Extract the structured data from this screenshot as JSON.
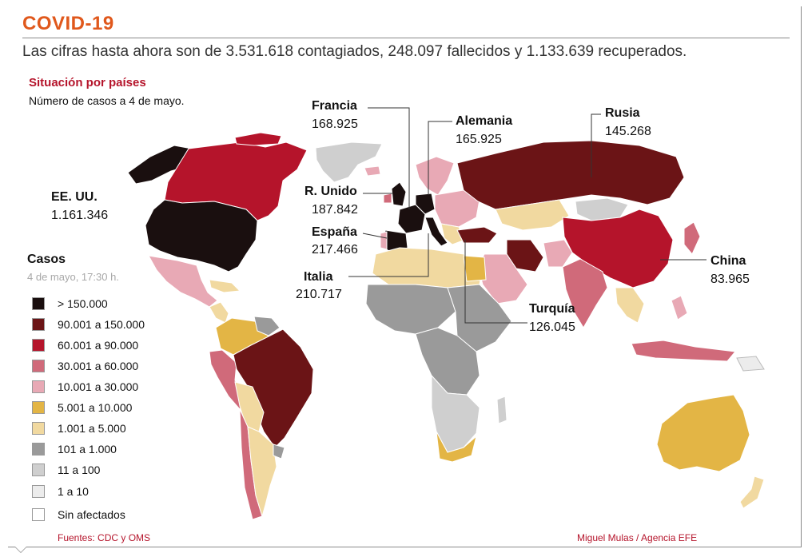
{
  "header": {
    "title": "COVID-19",
    "subtitle": "Las cifras hasta ahora son de 3.531.618 contagiados, 248.097 fallecidos y 1.133.639 recuperados."
  },
  "section": {
    "title": "Situación por países",
    "note": "Número de casos a 4 de mayo."
  },
  "countries": [
    {
      "name": "Francia",
      "value": "168.925"
    },
    {
      "name": "Alemania",
      "value": "165.925"
    },
    {
      "name": "Rusia",
      "value": "145.268"
    },
    {
      "name": "EE. UU.",
      "value": "1.161.346"
    },
    {
      "name": "R. Unido",
      "value": "187.842"
    },
    {
      "name": "España",
      "value": "217.466"
    },
    {
      "name": "Italia",
      "value": "210.717"
    },
    {
      "name": "China",
      "value": "83.965"
    },
    {
      "name": "Turquía",
      "value": "126.045"
    }
  ],
  "legend": {
    "title": "Casos",
    "timestamp": "4 de mayo, 17:30 h.",
    "items": [
      {
        "label": "> 150.000",
        "color": "#1a0f0f"
      },
      {
        "label": "90.001 a 150.000",
        "color": "#6b1416"
      },
      {
        "label": "60.001 a 90.000",
        "color": "#b5142b"
      },
      {
        "label": "30.001 a 60.000",
        "color": "#d06a7a"
      },
      {
        "label": "10.001 a 30.000",
        "color": "#e8a9b5"
      },
      {
        "label": "5.001 a 10.000",
        "color": "#e3b545"
      },
      {
        "label": "1.001 a 5.000",
        "color": "#f1d9a0"
      },
      {
        "label": "101 a 1.000",
        "color": "#9a9a9a"
      },
      {
        "label": "11 a 100",
        "color": "#cfcfcf"
      },
      {
        "label": "1 a 10",
        "color": "#ececec"
      },
      {
        "label": "Sin afectados",
        "color": "#ffffff"
      }
    ]
  },
  "footer": {
    "source": "Fuentes: CDC y OMS",
    "credit": "Miguel Mulas / Agencia EFE"
  }
}
